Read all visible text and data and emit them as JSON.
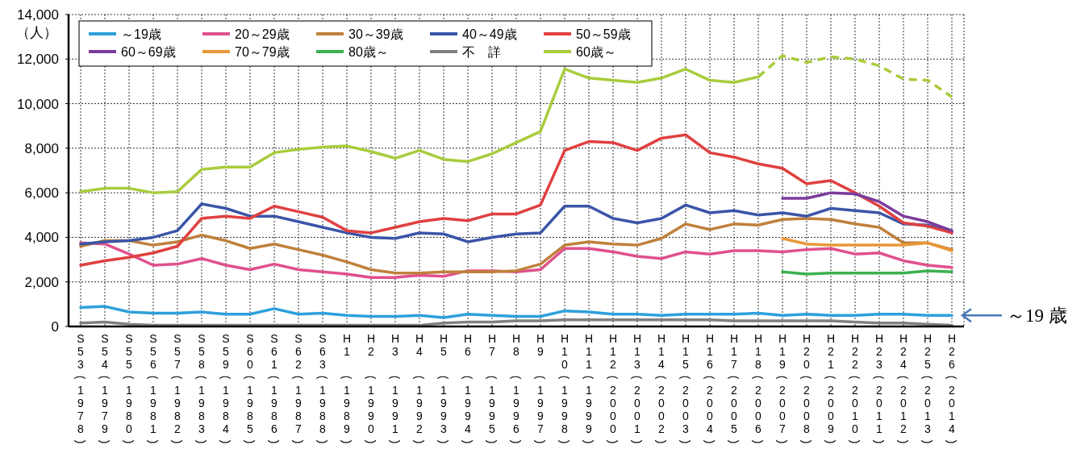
{
  "chart_data": {
    "type": "line",
    "ylabel": "（人）",
    "categories": [
      "S53(1978)",
      "S54(1979)",
      "S55(1980)",
      "S56(1981)",
      "S57(1982)",
      "S58(1983)",
      "S59(1984)",
      "S60(1985)",
      "S61(1986)",
      "S62(1987)",
      "S63(1988)",
      "H1(1989)",
      "H2(1990)",
      "H3(1991)",
      "H4(1992)",
      "H5(1993)",
      "H6(1994)",
      "H7(1995)",
      "H8(1996)",
      "H9(1997)",
      "H10(1998)",
      "H11(1999)",
      "H12(2000)",
      "H13(2001)",
      "H14(2002)",
      "H15(2003)",
      "H16(2004)",
      "H17(2005)",
      "H18(2006)",
      "H19(2007)",
      "H20(2008)",
      "H21(2009)",
      "H22(2010)",
      "H23(2011)",
      "H24(2012)",
      "H25(2013)",
      "H26(2014)"
    ],
    "ylim": [
      0,
      14000
    ],
    "yticks": [
      {
        "value": 0,
        "label": "0"
      },
      {
        "value": 2000,
        "label": "2,000"
      },
      {
        "value": 4000,
        "label": "4,000"
      },
      {
        "value": 6000,
        "label": "6,000"
      },
      {
        "value": 8000,
        "label": "8,000"
      },
      {
        "value": 10000,
        "label": "10,000"
      },
      {
        "value": 12000,
        "label": "12,000"
      },
      {
        "value": 14000,
        "label": "14,000"
      }
    ],
    "grid": true,
    "legend": "top left",
    "series": [
      {
        "name": "～19歳",
        "color": "#2ea0dc",
        "values": [
          850,
          900,
          650,
          600,
          600,
          650,
          550,
          550,
          800,
          550,
          600,
          500,
          450,
          450,
          500,
          400,
          550,
          500,
          450,
          450,
          700,
          650,
          550,
          550,
          500,
          550,
          550,
          550,
          600,
          500,
          550,
          500,
          500,
          550,
          550,
          500,
          500
        ]
      },
      {
        "name": "20～29歳",
        "color": "#e0508c",
        "values": [
          3750,
          3700,
          3250,
          2750,
          2800,
          3050,
          2750,
          2550,
          2800,
          2550,
          2450,
          2350,
          2200,
          2200,
          2300,
          2250,
          2500,
          2500,
          2450,
          2550,
          3500,
          3500,
          3350,
          3150,
          3050,
          3350,
          3250,
          3400,
          3400,
          3350,
          3450,
          3500,
          3250,
          3300,
          2950,
          2750,
          2650
        ]
      },
      {
        "name": "30～39歳",
        "color": "#c0803c",
        "values": [
          3600,
          3850,
          3850,
          3650,
          3800,
          4100,
          3850,
          3500,
          3700,
          3450,
          3200,
          2900,
          2550,
          2400,
          2400,
          2450,
          2450,
          2450,
          2500,
          2800,
          3650,
          3800,
          3700,
          3650,
          3950,
          4600,
          4350,
          4600,
          4550,
          4800,
          4850,
          4800,
          4600,
          4450,
          3750,
          3750,
          3450
        ]
      },
      {
        "name": "40～49歳",
        "color": "#3a55a8",
        "values": [
          3700,
          3800,
          3850,
          4000,
          4300,
          5500,
          5300,
          4950,
          4950,
          4700,
          4450,
          4200,
          4000,
          3950,
          4200,
          4150,
          3800,
          4000,
          4150,
          4200,
          5400,
          5400,
          4850,
          4650,
          4850,
          5450,
          5100,
          5200,
          5000,
          5100,
          4950,
          5300,
          5200,
          5100,
          4600,
          4550,
          4250
        ]
      },
      {
        "name": "50～59歳",
        "color": "#e04040",
        "values": [
          2750,
          2950,
          3100,
          3300,
          3600,
          4850,
          4950,
          4850,
          5400,
          5150,
          4900,
          4300,
          4200,
          4450,
          4700,
          4850,
          4750,
          5050,
          5050,
          5450,
          7900,
          8300,
          8250,
          7900,
          8450,
          8600,
          7800,
          7600,
          7300,
          7100,
          6400,
          6550,
          6000,
          5400,
          4650,
          4500,
          4200
        ]
      },
      {
        "name": "60～69歳",
        "color": "#7a3c9c",
        "values": [
          null,
          null,
          null,
          null,
          null,
          null,
          null,
          null,
          null,
          null,
          null,
          null,
          null,
          null,
          null,
          null,
          null,
          null,
          null,
          null,
          null,
          null,
          null,
          null,
          null,
          null,
          null,
          null,
          null,
          5750,
          5750,
          6000,
          5950,
          5600,
          4950,
          4700,
          4300
        ]
      },
      {
        "name": "70～79歳",
        "color": "#e89838",
        "values": [
          null,
          null,
          null,
          null,
          null,
          null,
          null,
          null,
          null,
          null,
          null,
          null,
          null,
          null,
          null,
          null,
          null,
          null,
          null,
          null,
          null,
          null,
          null,
          null,
          null,
          null,
          null,
          null,
          null,
          3950,
          3700,
          3650,
          3650,
          3650,
          3650,
          3750,
          3400
        ]
      },
      {
        "name": "80歳～",
        "color": "#3cb050",
        "values": [
          null,
          null,
          null,
          null,
          null,
          null,
          null,
          null,
          null,
          null,
          null,
          null,
          null,
          null,
          null,
          null,
          null,
          null,
          null,
          null,
          null,
          null,
          null,
          null,
          null,
          null,
          null,
          null,
          null,
          2450,
          2350,
          2400,
          2400,
          2400,
          2400,
          2500,
          2450
        ]
      },
      {
        "name": "不　詳",
        "color": "#808080",
        "values": [
          150,
          200,
          100,
          50,
          50,
          50,
          50,
          50,
          50,
          50,
          50,
          50,
          50,
          50,
          50,
          150,
          200,
          200,
          250,
          250,
          300,
          300,
          300,
          300,
          300,
          300,
          300,
          250,
          250,
          250,
          250,
          250,
          200,
          150,
          150,
          100,
          50
        ]
      },
      {
        "name": "60歳～",
        "color": "#a8cc3c",
        "values": [
          6050,
          6200,
          6200,
          6000,
          6050,
          7050,
          7150,
          7150,
          7800,
          7950,
          8050,
          8100,
          7850,
          7550,
          7900,
          7500,
          7400,
          7750,
          8250,
          8750,
          11550,
          11150,
          11050,
          10950,
          11150,
          11550,
          11050,
          10950,
          11200,
          null,
          null,
          null,
          null,
          null,
          null,
          null,
          null
        ]
      },
      {
        "color": "#a8cc3c",
        "line_style": "dashed",
        "values": [
          null,
          null,
          null,
          null,
          null,
          null,
          null,
          null,
          null,
          null,
          null,
          null,
          null,
          null,
          null,
          null,
          null,
          null,
          null,
          null,
          null,
          null,
          null,
          null,
          null,
          null,
          null,
          null,
          11200,
          12150,
          11850,
          12100,
          12000,
          11700,
          11100,
          11050,
          10300
        ]
      }
    ],
    "annotations": [
      {
        "text": "～19 歳",
        "x": "H26(2014)",
        "y": 500
      }
    ]
  }
}
